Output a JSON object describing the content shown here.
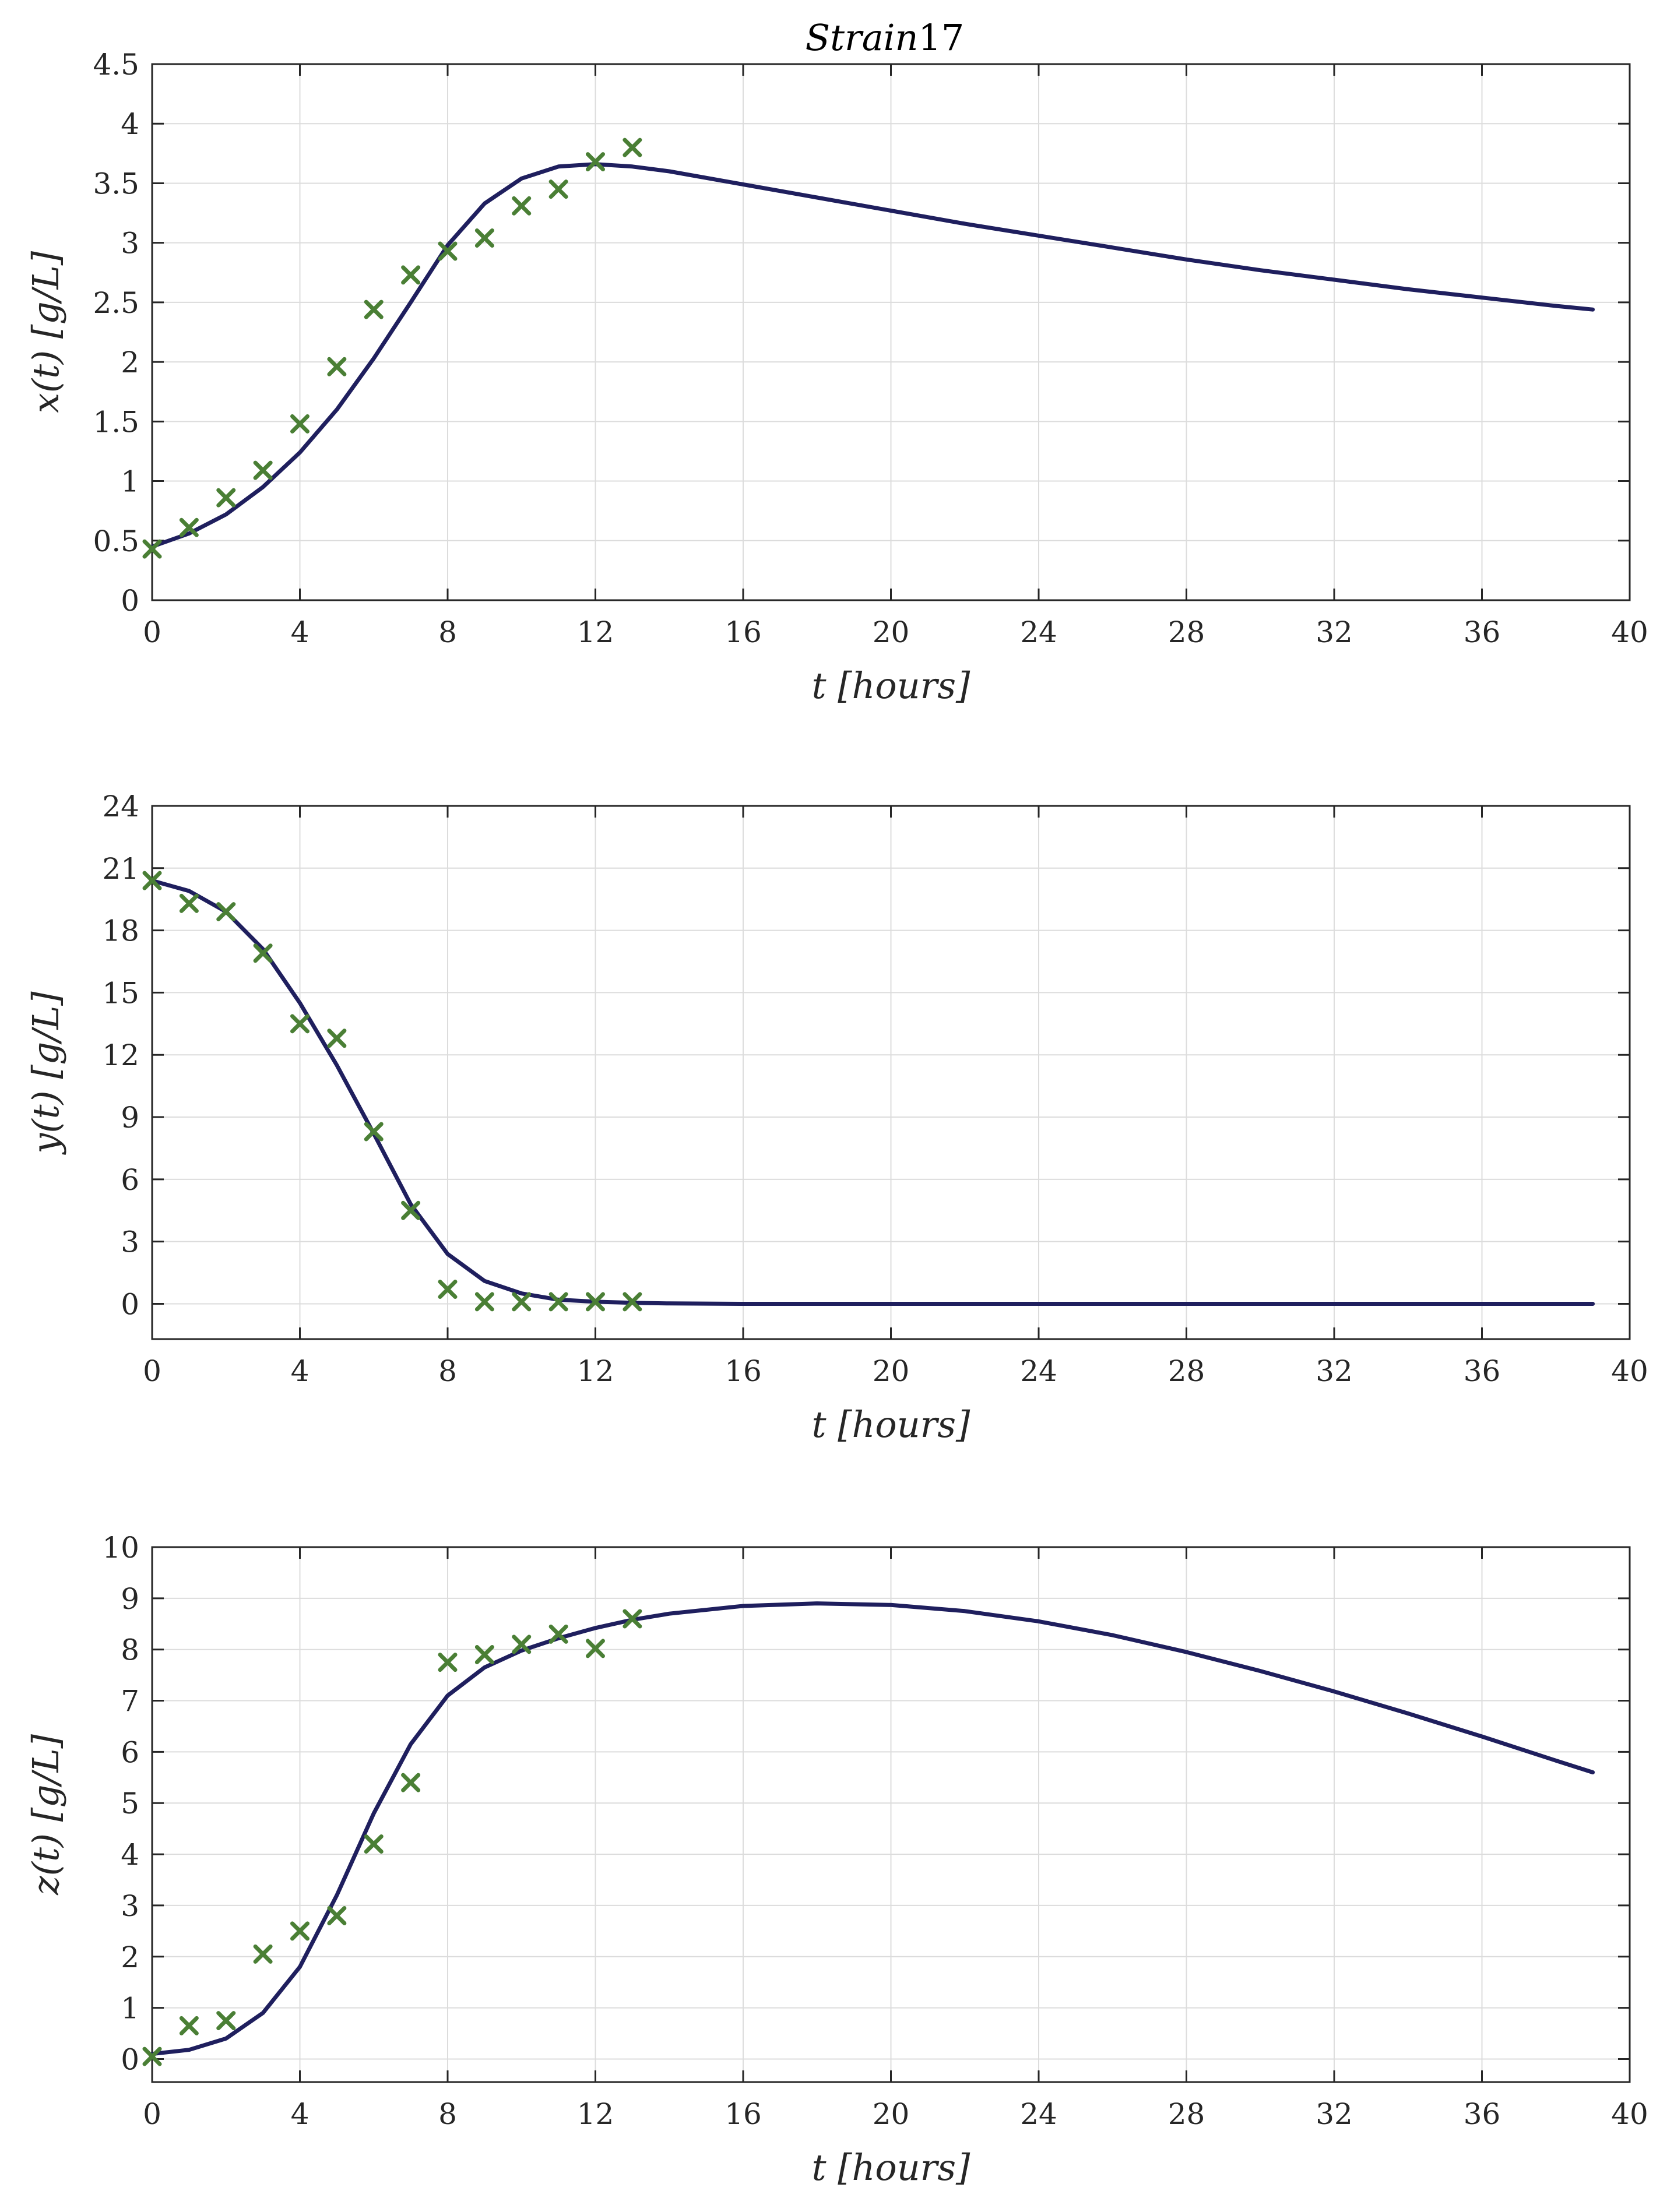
{
  "figure": {
    "title_italic": "Strain",
    "title_number": "17",
    "colors": {
      "model": "#1f1f5e",
      "data": "#4a7f35",
      "grid": "#dcdcdc",
      "axes": "#262626"
    }
  },
  "chart_data": [
    {
      "type": "line",
      "title": "Strain 17",
      "xlabel": "t [hours]",
      "ylabel": "x(t) [g/L]",
      "xlim": [
        0,
        40
      ],
      "ylim": [
        0,
        4.5
      ],
      "xticks": [
        0,
        4,
        8,
        12,
        16,
        20,
        24,
        28,
        32,
        36,
        40
      ],
      "yticks": [
        0,
        0.5,
        1,
        1.5,
        2,
        2.5,
        3,
        3.5,
        4,
        4.5
      ],
      "ytick_labels": [
        "0",
        "0.5",
        "1",
        "1.5",
        "2",
        "2.5",
        "3",
        "3.5",
        "4",
        "4.5"
      ],
      "grid": true,
      "series": [
        {
          "kind": "line",
          "x": [
            0,
            1,
            2,
            3,
            4,
            5,
            6,
            7,
            8,
            9,
            10,
            11,
            12,
            13,
            14,
            16,
            18,
            20,
            22,
            24,
            26,
            28,
            30,
            32,
            34,
            36,
            38,
            39
          ],
          "y": [
            0.45,
            0.56,
            0.72,
            0.95,
            1.24,
            1.6,
            2.03,
            2.5,
            2.98,
            3.33,
            3.54,
            3.64,
            3.66,
            3.64,
            3.6,
            3.49,
            3.38,
            3.27,
            3.16,
            3.06,
            2.96,
            2.86,
            2.77,
            2.69,
            2.61,
            2.54,
            2.47,
            2.44
          ]
        },
        {
          "kind": "marker",
          "x": [
            0,
            1,
            2,
            3,
            4,
            5,
            6,
            7,
            8,
            9,
            10,
            11,
            12,
            13
          ],
          "y": [
            0.43,
            0.61,
            0.86,
            1.09,
            1.48,
            1.96,
            2.44,
            2.73,
            2.93,
            3.04,
            3.31,
            3.45,
            3.68,
            3.8
          ]
        }
      ]
    },
    {
      "type": "line",
      "xlabel": "t [hours]",
      "ylabel": "y(t) [g/L]",
      "xlim": [
        0,
        40
      ],
      "ylim": [
        -1.7,
        24
      ],
      "xticks": [
        0,
        4,
        8,
        12,
        16,
        20,
        24,
        28,
        32,
        36,
        40
      ],
      "yticks": [
        0,
        3,
        6,
        9,
        12,
        15,
        18,
        21,
        24
      ],
      "ytick_labels": [
        "0",
        "3",
        "6",
        "9",
        "12",
        "15",
        "18",
        "21",
        "24"
      ],
      "grid": true,
      "series": [
        {
          "kind": "line",
          "x": [
            0,
            1,
            2,
            3,
            4,
            5,
            6,
            7,
            8,
            9,
            10,
            11,
            12,
            13,
            14,
            16,
            20,
            24,
            28,
            32,
            36,
            39
          ],
          "y": [
            20.4,
            19.9,
            18.9,
            17.1,
            14.5,
            11.5,
            8.2,
            4.8,
            2.4,
            1.1,
            0.5,
            0.2,
            0.1,
            0.05,
            0.02,
            0,
            0,
            0,
            0,
            0,
            0,
            0
          ]
        },
        {
          "kind": "marker",
          "x": [
            0,
            1,
            2,
            3,
            4,
            5,
            6,
            7,
            8,
            9,
            10,
            11,
            12,
            13
          ],
          "y": [
            20.4,
            19.3,
            18.9,
            16.9,
            13.5,
            12.8,
            8.3,
            4.5,
            0.7,
            0.1,
            0.1,
            0.1,
            0.1,
            0.1
          ]
        }
      ]
    },
    {
      "type": "line",
      "xlabel": "t [hours]",
      "ylabel": "z(t) [g/L]",
      "xlim": [
        0,
        40
      ],
      "ylim": [
        -0.45,
        10
      ],
      "xticks": [
        0,
        4,
        8,
        12,
        16,
        20,
        24,
        28,
        32,
        36,
        40
      ],
      "yticks": [
        0,
        1,
        2,
        3,
        4,
        5,
        6,
        7,
        8,
        9,
        10
      ],
      "ytick_labels": [
        "0",
        "1",
        "2",
        "3",
        "4",
        "5",
        "6",
        "7",
        "8",
        "9",
        "10"
      ],
      "grid": true,
      "series": [
        {
          "kind": "line",
          "x": [
            0,
            1,
            2,
            3,
            4,
            5,
            6,
            7,
            8,
            9,
            10,
            11,
            12,
            13,
            14,
            16,
            18,
            20,
            22,
            24,
            26,
            28,
            30,
            32,
            34,
            36,
            38,
            39
          ],
          "y": [
            0.1,
            0.18,
            0.4,
            0.9,
            1.8,
            3.2,
            4.8,
            6.15,
            7.1,
            7.65,
            7.98,
            8.22,
            8.42,
            8.58,
            8.7,
            8.85,
            8.9,
            8.87,
            8.75,
            8.55,
            8.28,
            7.95,
            7.58,
            7.18,
            6.75,
            6.3,
            5.83,
            5.6
          ]
        },
        {
          "kind": "marker",
          "x": [
            0,
            1,
            2,
            3,
            4,
            5,
            6,
            7,
            8,
            9,
            10,
            11,
            12,
            13
          ],
          "y": [
            0.05,
            0.65,
            0.75,
            2.05,
            2.5,
            2.8,
            4.2,
            5.4,
            7.75,
            7.9,
            8.1,
            8.3,
            8.02,
            8.6
          ]
        }
      ]
    }
  ]
}
